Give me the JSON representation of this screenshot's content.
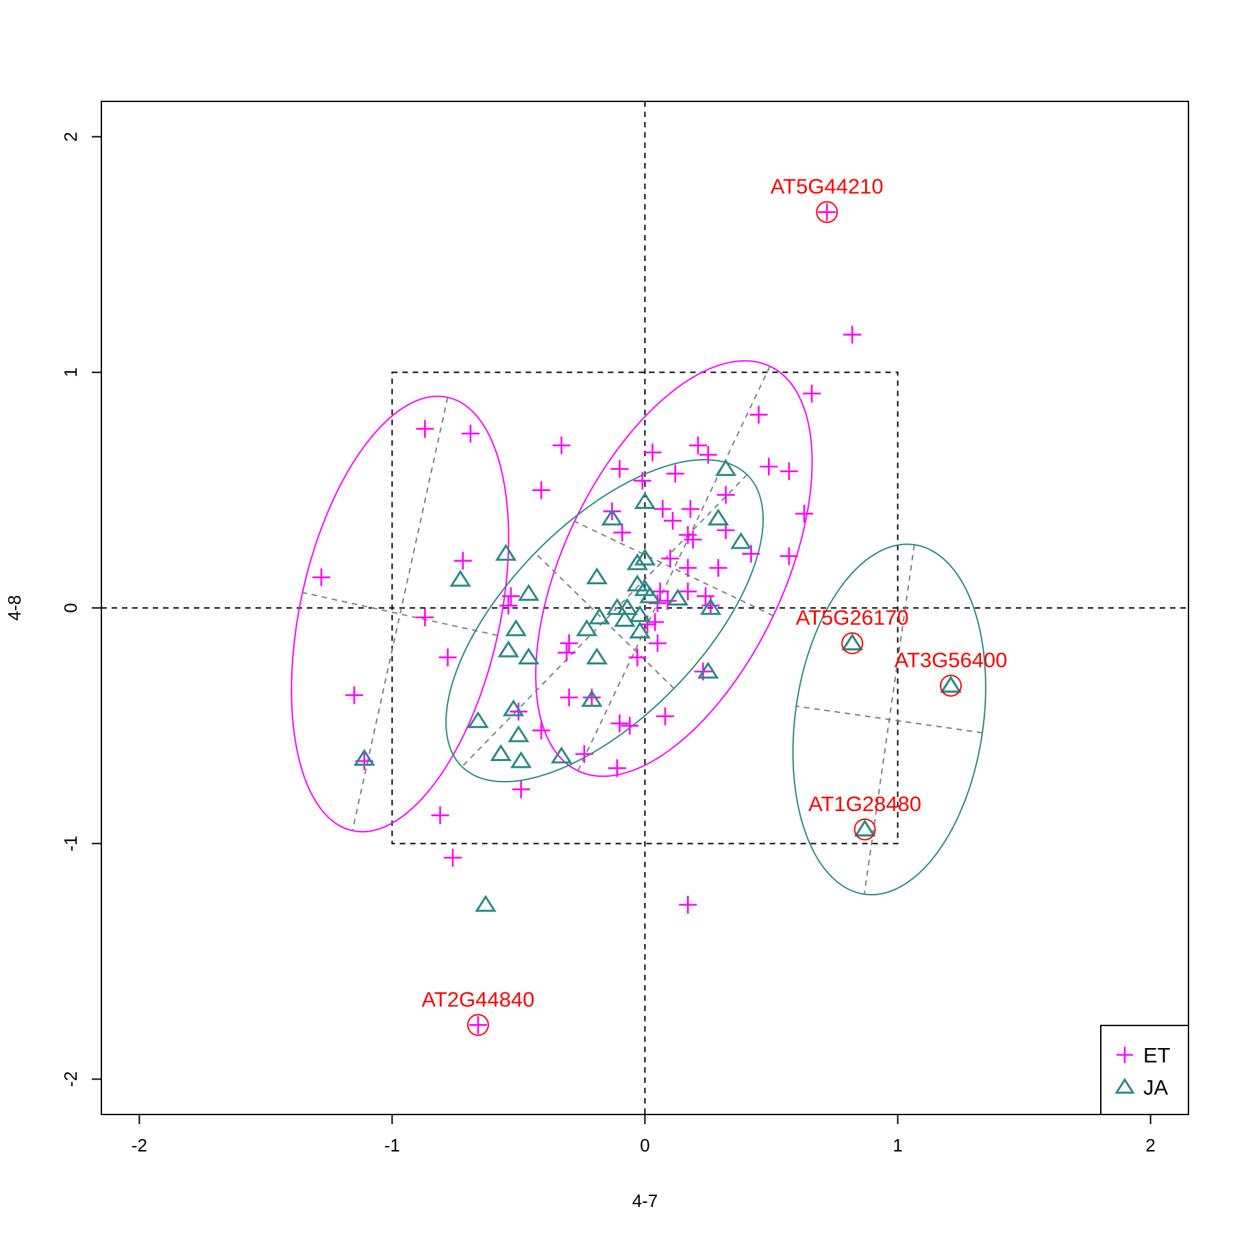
{
  "chart_data": {
    "type": "scatter",
    "xlabel": "4-7",
    "ylabel": "4-8",
    "xlim": [
      -2.15,
      2.15
    ],
    "ylim": [
      -2.15,
      2.15
    ],
    "x_ticks": [
      -2,
      -1,
      0,
      1,
      2
    ],
    "y_ticks": [
      -2,
      -1,
      0,
      1,
      2
    ],
    "x_tick_labels": [
      "-2",
      "-1",
      "0",
      "1",
      "2"
    ],
    "y_tick_labels": [
      "-2",
      "-1",
      "0",
      "1",
      "2"
    ],
    "reference_lines": {
      "x": 0,
      "y": 0
    },
    "threshold_box": {
      "x": [
        -1,
        1
      ],
      "y": [
        -1,
        1
      ]
    },
    "legend_position": "bottom-right",
    "series": [
      {
        "name": "ET",
        "marker": "plus",
        "color": "#ff00ff",
        "points": [
          [
            -0.87,
            0.76
          ],
          [
            -0.69,
            0.74
          ],
          [
            -0.72,
            0.2
          ],
          [
            -1.28,
            0.13
          ],
          [
            -0.87,
            -0.04
          ],
          [
            -0.78,
            -0.21
          ],
          [
            -1.15,
            -0.37
          ],
          [
            -1.11,
            -0.65
          ],
          [
            -0.81,
            -0.88
          ],
          [
            -0.76,
            -1.06
          ],
          [
            -0.33,
            0.69
          ],
          [
            -0.41,
            0.5
          ],
          [
            -0.1,
            0.59
          ],
          [
            0.03,
            0.66
          ],
          [
            -0.01,
            0.54
          ],
          [
            0.12,
            0.57
          ],
          [
            0.21,
            0.69
          ],
          [
            0.25,
            0.65
          ],
          [
            0.45,
            0.82
          ],
          [
            0.66,
            0.91
          ],
          [
            0.82,
            1.16
          ],
          [
            0.49,
            0.6
          ],
          [
            0.57,
            0.58
          ],
          [
            0.32,
            0.48
          ],
          [
            0.63,
            0.4
          ],
          [
            0.57,
            0.22
          ],
          [
            0.42,
            0.23
          ],
          [
            0.32,
            0.33
          ],
          [
            0.29,
            0.17
          ],
          [
            0.18,
            0.42
          ],
          [
            0.11,
            0.37
          ],
          [
            0.07,
            0.42
          ],
          [
            -0.09,
            0.32
          ],
          [
            0.17,
            0.31
          ],
          [
            0.19,
            0.29
          ],
          [
            0.1,
            0.21
          ],
          [
            0.17,
            0.17
          ],
          [
            0.06,
            0.07
          ],
          [
            0.17,
            0.07
          ],
          [
            0.09,
            0.03
          ],
          [
            0.05,
            0.02
          ],
          [
            0.24,
            0.05
          ],
          [
            0.26,
            0.01
          ],
          [
            0.04,
            -0.06
          ],
          [
            0.01,
            -0.07
          ],
          [
            0.05,
            -0.15
          ],
          [
            -0.3,
            -0.15
          ],
          [
            -0.31,
            -0.19
          ],
          [
            -0.03,
            -0.21
          ],
          [
            0.23,
            -0.27
          ],
          [
            -0.3,
            -0.38
          ],
          [
            -0.21,
            -0.38
          ],
          [
            -0.5,
            -0.44
          ],
          [
            -0.1,
            -0.49
          ],
          [
            -0.06,
            -0.5
          ],
          [
            0.08,
            -0.46
          ],
          [
            -0.41,
            -0.52
          ],
          [
            -0.24,
            -0.62
          ],
          [
            -0.11,
            -0.68
          ],
          [
            -0.49,
            -0.77
          ],
          [
            0.17,
            -1.26
          ],
          [
            -0.53,
            0.05
          ],
          [
            -0.54,
            0.01
          ],
          [
            -0.13,
            0.41
          ]
        ]
      },
      {
        "name": "JA",
        "marker": "triangle",
        "color": "#2a8a86",
        "points": [
          [
            -0.55,
            0.23
          ],
          [
            -0.73,
            0.12
          ],
          [
            -0.46,
            0.06
          ],
          [
            -0.51,
            -0.09
          ],
          [
            -0.54,
            -0.18
          ],
          [
            -0.46,
            -0.21
          ],
          [
            -0.19,
            0.13
          ],
          [
            -0.13,
            0.38
          ],
          [
            0.0,
            0.45
          ],
          [
            -0.03,
            0.19
          ],
          [
            0.0,
            0.21
          ],
          [
            -0.03,
            0.1
          ],
          [
            0.0,
            0.08
          ],
          [
            0.02,
            0.05
          ],
          [
            -0.11,
            0.0
          ],
          [
            -0.07,
            0.0
          ],
          [
            -0.18,
            -0.04
          ],
          [
            -0.08,
            -0.05
          ],
          [
            -0.02,
            -0.03
          ],
          [
            -0.23,
            -0.09
          ],
          [
            -0.02,
            -0.1
          ],
          [
            -0.19,
            -0.21
          ],
          [
            -0.21,
            -0.39
          ],
          [
            0.13,
            0.04
          ],
          [
            0.26,
            0.0
          ],
          [
            0.29,
            0.38
          ],
          [
            0.32,
            0.59
          ],
          [
            0.38,
            0.28
          ],
          [
            0.25,
            -0.27
          ],
          [
            -0.52,
            -0.43
          ],
          [
            -0.66,
            -0.48
          ],
          [
            -0.5,
            -0.54
          ],
          [
            -0.57,
            -0.62
          ],
          [
            -0.49,
            -0.65
          ],
          [
            -0.33,
            -0.63
          ],
          [
            -1.11,
            -0.64
          ],
          [
            -0.63,
            -1.26
          ],
          [
            0.82,
            -0.15
          ],
          [
            1.21,
            -0.33
          ],
          [
            0.87,
            -0.94
          ]
        ]
      }
    ],
    "highlighted": [
      {
        "label": "AT5G44210",
        "x": 0.72,
        "y": 1.68,
        "series": "ET"
      },
      {
        "label": "AT5G26170",
        "x": 0.82,
        "y": -0.15,
        "series": "JA"
      },
      {
        "label": "AT3G56400",
        "x": 1.21,
        "y": -0.33,
        "series": "JA"
      },
      {
        "label": "AT1G28480",
        "x": 0.87,
        "y": -0.94,
        "series": "JA"
      },
      {
        "label": "AT2G44840",
        "x": -0.66,
        "y": -1.77,
        "series": "ET"
      }
    ],
    "highlight_color": "#ff0000",
    "axes_line_color": "#7f7f7f"
  }
}
